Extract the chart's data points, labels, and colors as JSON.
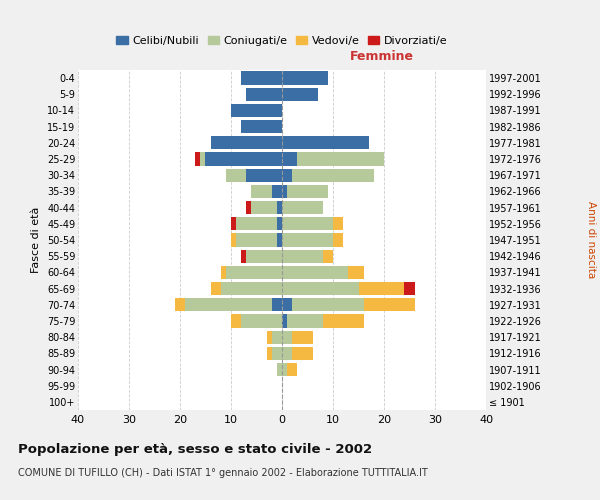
{
  "age_groups": [
    "100+",
    "95-99",
    "90-94",
    "85-89",
    "80-84",
    "75-79",
    "70-74",
    "65-69",
    "60-64",
    "55-59",
    "50-54",
    "45-49",
    "40-44",
    "35-39",
    "30-34",
    "25-29",
    "20-24",
    "15-19",
    "10-14",
    "5-9",
    "0-4"
  ],
  "birth_years": [
    "≤ 1901",
    "1902-1906",
    "1907-1911",
    "1912-1916",
    "1917-1921",
    "1922-1926",
    "1927-1931",
    "1932-1936",
    "1937-1941",
    "1942-1946",
    "1947-1951",
    "1952-1956",
    "1957-1961",
    "1962-1966",
    "1967-1971",
    "1972-1976",
    "1977-1981",
    "1982-1986",
    "1987-1991",
    "1992-1996",
    "1997-2001"
  ],
  "males": {
    "celibi": [
      0,
      0,
      0,
      0,
      0,
      0,
      2,
      0,
      0,
      0,
      1,
      1,
      1,
      2,
      7,
      15,
      14,
      8,
      10,
      7,
      8
    ],
    "coniugati": [
      0,
      0,
      1,
      2,
      2,
      8,
      17,
      12,
      11,
      7,
      8,
      8,
      5,
      4,
      4,
      1,
      0,
      0,
      0,
      0,
      0
    ],
    "vedovi": [
      0,
      0,
      0,
      1,
      1,
      2,
      2,
      2,
      1,
      0,
      1,
      0,
      0,
      0,
      0,
      0,
      0,
      0,
      0,
      0,
      0
    ],
    "divorziati": [
      0,
      0,
      0,
      0,
      0,
      0,
      0,
      0,
      0,
      1,
      0,
      1,
      1,
      0,
      0,
      1,
      0,
      0,
      0,
      0,
      0
    ]
  },
  "females": {
    "nubili": [
      0,
      0,
      0,
      0,
      0,
      1,
      2,
      0,
      0,
      0,
      0,
      0,
      0,
      1,
      2,
      3,
      17,
      0,
      0,
      7,
      9
    ],
    "coniugate": [
      0,
      0,
      1,
      2,
      2,
      7,
      14,
      15,
      13,
      8,
      10,
      10,
      8,
      8,
      16,
      17,
      0,
      0,
      0,
      0,
      0
    ],
    "vedove": [
      0,
      0,
      2,
      4,
      4,
      8,
      10,
      9,
      3,
      2,
      2,
      2,
      0,
      0,
      0,
      0,
      0,
      0,
      0,
      0,
      0
    ],
    "divorziate": [
      0,
      0,
      0,
      0,
      0,
      0,
      0,
      2,
      0,
      0,
      0,
      0,
      0,
      0,
      0,
      0,
      0,
      0,
      0,
      0,
      0
    ]
  },
  "colors": {
    "celibi_nubili": "#3a6ea5",
    "coniugati": "#b5c99a",
    "vedovi": "#f5b942",
    "divorziati": "#cc1a1a"
  },
  "xlim": 40,
  "title": "Popolazione per età, sesso e stato civile - 2002",
  "subtitle": "COMUNE DI TUFILLO (CH) - Dati ISTAT 1° gennaio 2002 - Elaborazione TUTTITALIA.IT",
  "ylabel_left": "Fasce di età",
  "ylabel_right": "Anni di nascita",
  "xlabel_femmine": "Femmine",
  "background_color": "#f0f0f0",
  "plot_bg": "#ffffff"
}
